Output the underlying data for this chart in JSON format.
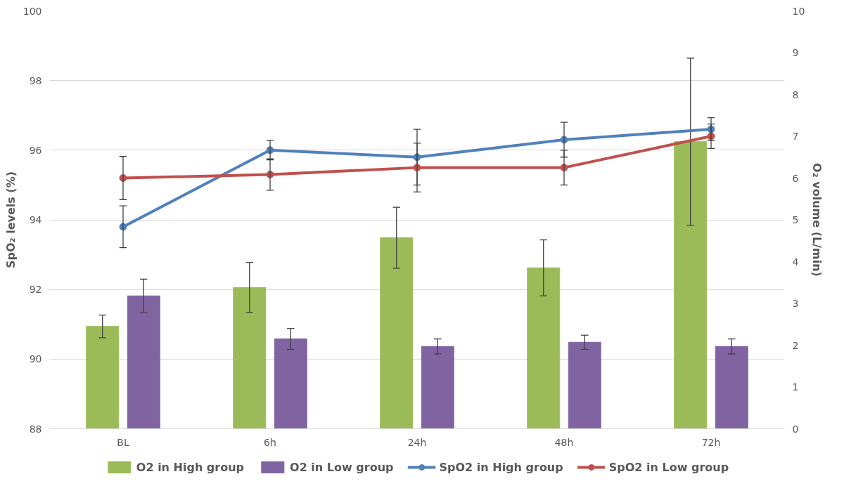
{
  "chart_data": {
    "type": "bar",
    "ylabel": "SpO₂ levels (%)",
    "y2label": "O₂ volume (L/min)",
    "categories": [
      "BL",
      "6h",
      "24h",
      "48h",
      "72h"
    ],
    "ylim": [
      88,
      100
    ],
    "yticks": [
      88,
      90,
      92,
      94,
      96,
      98,
      100
    ],
    "y2lim": [
      0,
      10
    ],
    "y2ticks": [
      0,
      1,
      2,
      3,
      4,
      5,
      6,
      7,
      8,
      9,
      10
    ],
    "grid": "y",
    "legend": "bottom",
    "marker": "circle",
    "line_style": "solid",
    "series": [
      {
        "name": "O2 in High group",
        "axis": "y2",
        "color": "#9bbb59",
        "values": [
          2.45,
          3.38,
          4.57,
          3.85,
          6.87
        ],
        "errors": [
          0.27,
          0.6,
          0.73,
          0.67,
          2.0
        ]
      },
      {
        "name": "O2 in Low group",
        "axis": "y2",
        "color": "#8064a2",
        "values": [
          3.18,
          2.15,
          1.97,
          2.07,
          1.97
        ],
        "errors": [
          0.4,
          0.25,
          0.18,
          0.17,
          0.18
        ]
      },
      {
        "name": "SpO2 in High group",
        "type": "line",
        "color": "#4f81bd",
        "values": [
          93.8,
          96.0,
          95.8,
          96.3,
          96.6
        ],
        "errors": [
          0.6,
          0.28,
          0.8,
          0.5,
          0.33
        ]
      },
      {
        "name": "SpO2 in Low group",
        "type": "line",
        "color": "#c0504d",
        "values": [
          95.2,
          95.3,
          95.5,
          95.5,
          96.4
        ],
        "errors": [
          0.62,
          0.45,
          0.7,
          0.5,
          0.35
        ]
      }
    ]
  }
}
